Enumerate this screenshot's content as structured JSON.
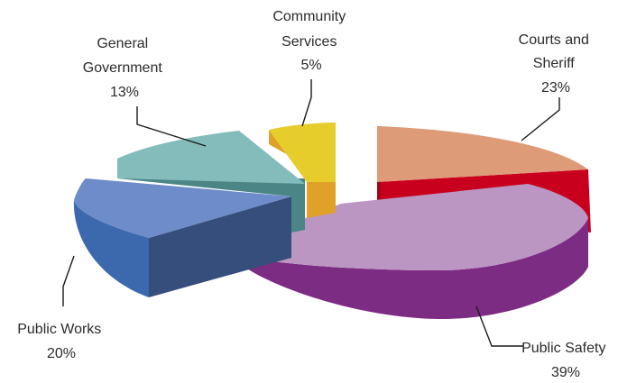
{
  "chart_data": {
    "type": "pie",
    "style": "3d-exploded",
    "title": "",
    "slices": [
      {
        "key": "courts",
        "name_lines": [
          "Courts and",
          "Sheriff"
        ],
        "value": 23,
        "value_label": "23%",
        "top_color": "#dd9b78",
        "side_color": "#c8001e",
        "dark_side_color": "#a60019"
      },
      {
        "key": "safety",
        "name_lines": [
          "Public Safety"
        ],
        "value": 39,
        "value_label": "39%",
        "top_color": "#bb96c2",
        "side_color": "#7d2c83",
        "dark_side_color": "#65216b"
      },
      {
        "key": "works",
        "name_lines": [
          "Public Works"
        ],
        "value": 20,
        "value_label": "20%",
        "top_color": "#6d8cc9",
        "side_color": "#3c69ad",
        "dark_side_color": "#354e7c"
      },
      {
        "key": "general",
        "name_lines": [
          "General",
          "Government"
        ],
        "value": 13,
        "value_label": "13%",
        "top_color": "#84bcbc",
        "side_color": "#4b8585",
        "dark_side_color": "#3f7272"
      },
      {
        "key": "community",
        "name_lines": [
          "Community",
          "Services"
        ],
        "value": 5,
        "value_label": "5%",
        "top_color": "#e7cd2c",
        "side_color": "#dfa128",
        "dark_side_color": "#c98a1f"
      }
    ]
  }
}
